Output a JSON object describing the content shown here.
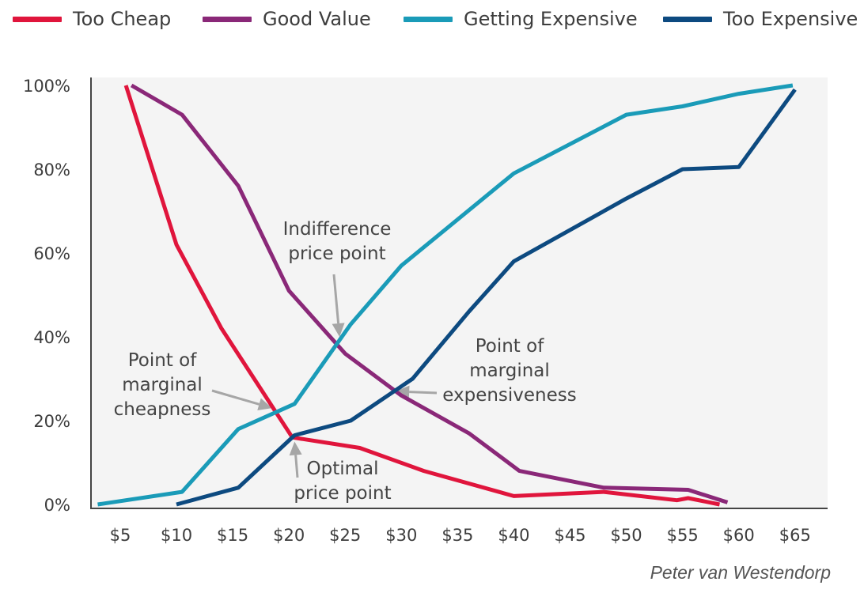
{
  "chart_data": {
    "type": "line",
    "title": "",
    "xlabel": "",
    "ylabel": "",
    "x_tick_labels": [
      "$5",
      "$10",
      "$15",
      "$20",
      "$25",
      "$30",
      "$35",
      "$40",
      "$45",
      "$50",
      "$55",
      "$60",
      "$65"
    ],
    "y_tick_labels": [
      "0%",
      "20%",
      "40%",
      "60%",
      "80%",
      "100%"
    ],
    "xlim": [
      2.4,
      67.9
    ],
    "ylim": [
      0,
      100
    ],
    "grid": false,
    "legend_position": "top",
    "series": [
      {
        "name": "Too Cheap",
        "color": "#e0153c",
        "x": [
          5.5,
          10,
          14,
          20.3,
          26.3,
          32,
          40,
          48,
          54.5,
          55.5,
          58.3
        ],
        "y": [
          100,
          62,
          42,
          16,
          13.5,
          8,
          2,
          3,
          1,
          1.5,
          0
        ]
      },
      {
        "name": "Good Value",
        "color": "#8a2878",
        "x": [
          6,
          10.5,
          15.5,
          20,
          25,
          30,
          36,
          40.5,
          48,
          55.5,
          59
        ],
        "y": [
          100,
          93,
          76,
          51,
          36,
          26,
          17,
          8,
          4,
          3.5,
          0.5
        ]
      },
      {
        "name": "Getting Expensive",
        "color": "#1a9bb8",
        "x": [
          3,
          10.5,
          15.5,
          20.5,
          25.5,
          30,
          40,
          50,
          55,
          60,
          64.8
        ],
        "y": [
          0,
          3,
          18,
          24,
          43,
          57,
          79,
          93,
          95,
          98,
          100
        ]
      },
      {
        "name": "Too Expensive",
        "color": "#0d4a80",
        "x": [
          10,
          15.5,
          20.5,
          25.5,
          31,
          36,
          40,
          50,
          55,
          60,
          65
        ],
        "y": [
          0,
          4,
          16.5,
          20,
          30,
          46,
          58,
          73,
          80,
          80.5,
          99
        ]
      }
    ],
    "annotations": [
      {
        "lines": [
          "Indifference",
          "price point"
        ],
        "points_to": [
          24.5,
          40
        ]
      },
      {
        "lines": [
          "Point of",
          "marginal",
          "cheapness"
        ],
        "points_to": [
          18.5,
          23
        ]
      },
      {
        "lines": [
          "Optimal",
          "price point"
        ],
        "points_to": [
          20.5,
          15
        ]
      },
      {
        "lines": [
          "Point of",
          "marginal",
          "expensiveness"
        ],
        "points_to": [
          29.5,
          27
        ]
      }
    ]
  },
  "credit": "Peter van Westendorp"
}
